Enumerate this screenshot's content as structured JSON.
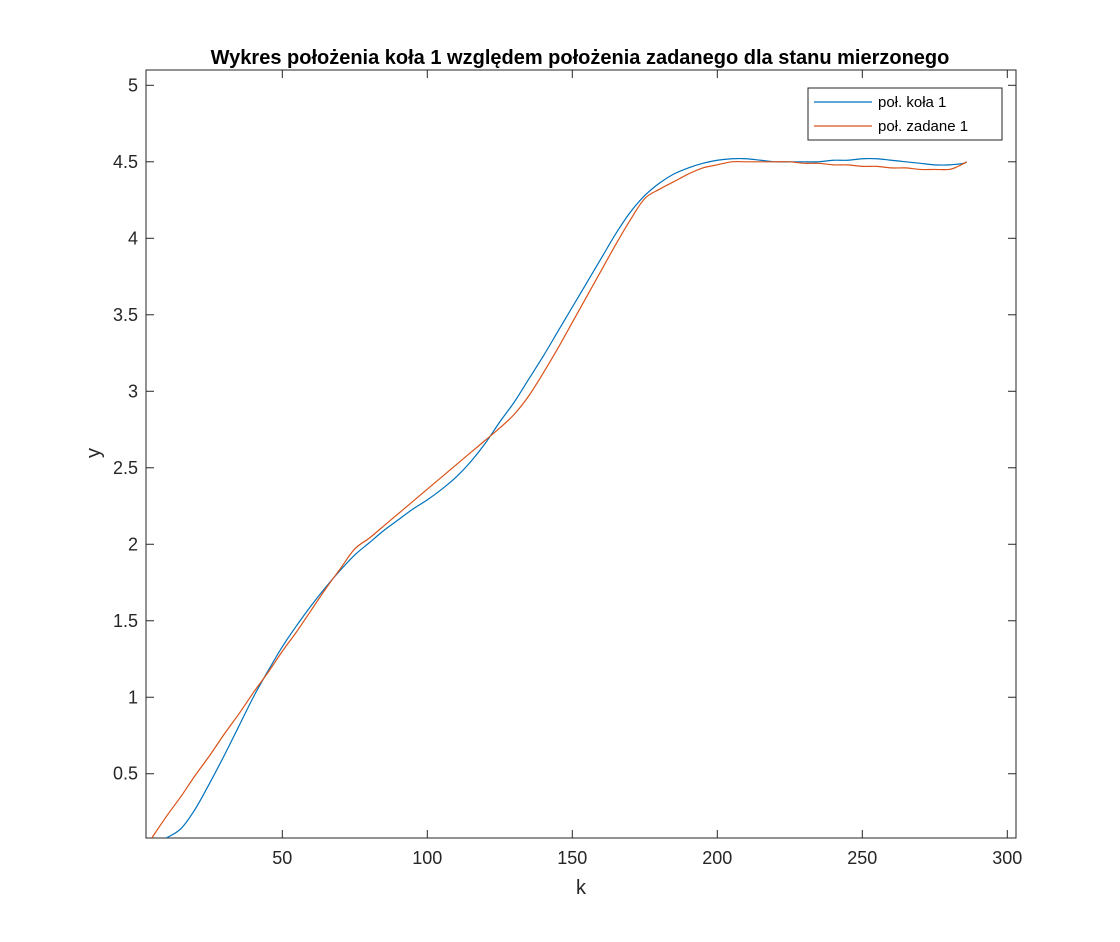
{
  "chart_data": {
    "type": "line",
    "title": "Wykres położenia koła 1 względem położenia zadanego dla stanu mierzonego",
    "xlabel": "k",
    "ylabel": "y",
    "xlim": [
      3,
      303
    ],
    "ylim": [
      0.08,
      5.1
    ],
    "xticks": [
      50,
      100,
      150,
      200,
      250,
      300
    ],
    "yticks": [
      0.5,
      1,
      1.5,
      2,
      2.5,
      3,
      3.5,
      4,
      4.5,
      5
    ],
    "xtick_labels": [
      "50",
      "100",
      "150",
      "200",
      "250",
      "300"
    ],
    "ytick_labels": [
      "0.5",
      "1",
      "1.5",
      "2",
      "2.5",
      "3",
      "3.5",
      "4",
      "4.5",
      "5"
    ],
    "grid": false,
    "legend_position": "top-right",
    "series": [
      {
        "name": "poł. koła 1",
        "color": "#0072BD",
        "x": [
          10,
          15,
          20,
          25,
          30,
          35,
          40,
          45,
          50,
          55,
          60,
          65,
          70,
          75,
          80,
          85,
          90,
          95,
          100,
          105,
          110,
          115,
          120,
          125,
          130,
          135,
          140,
          145,
          150,
          155,
          160,
          165,
          170,
          175,
          180,
          185,
          190,
          195,
          200,
          205,
          210,
          215,
          220,
          225,
          230,
          235,
          240,
          245,
          250,
          255,
          260,
          265,
          270,
          275,
          280,
          285,
          286
        ],
        "y": [
          0.08,
          0.14,
          0.27,
          0.44,
          0.62,
          0.81,
          1.0,
          1.17,
          1.33,
          1.47,
          1.6,
          1.72,
          1.83,
          1.93,
          2.01,
          2.09,
          2.16,
          2.23,
          2.29,
          2.36,
          2.44,
          2.54,
          2.66,
          2.8,
          2.93,
          3.08,
          3.23,
          3.39,
          3.55,
          3.71,
          3.87,
          4.03,
          4.17,
          4.28,
          4.36,
          4.42,
          4.46,
          4.49,
          4.51,
          4.52,
          4.52,
          4.51,
          4.5,
          4.5,
          4.5,
          4.5,
          4.51,
          4.51,
          4.52,
          4.52,
          4.51,
          4.5,
          4.49,
          4.48,
          4.48,
          4.49,
          4.5
        ]
      },
      {
        "name": "poł. zadane 1",
        "color": "#D95319",
        "x": [
          5,
          10,
          15,
          20,
          25,
          30,
          35,
          40,
          45,
          50,
          55,
          60,
          65,
          70,
          75,
          80,
          85,
          90,
          95,
          100,
          105,
          110,
          115,
          120,
          125,
          130,
          135,
          140,
          145,
          150,
          155,
          160,
          165,
          170,
          175,
          180,
          185,
          190,
          195,
          200,
          205,
          210,
          215,
          220,
          225,
          230,
          235,
          240,
          245,
          250,
          255,
          260,
          265,
          270,
          275,
          280,
          283,
          286
        ],
        "y": [
          0.08,
          0.22,
          0.35,
          0.49,
          0.62,
          0.76,
          0.89,
          1.03,
          1.16,
          1.3,
          1.43,
          1.57,
          1.71,
          1.84,
          1.97,
          2.04,
          2.12,
          2.2,
          2.28,
          2.36,
          2.44,
          2.52,
          2.6,
          2.68,
          2.76,
          2.85,
          2.97,
          3.12,
          3.28,
          3.45,
          3.62,
          3.79,
          3.96,
          4.12,
          4.26,
          4.32,
          4.37,
          4.42,
          4.46,
          4.48,
          4.5,
          4.5,
          4.5,
          4.5,
          4.5,
          4.49,
          4.49,
          4.48,
          4.48,
          4.47,
          4.47,
          4.46,
          4.46,
          4.45,
          4.45,
          4.45,
          4.47,
          4.5
        ]
      }
    ]
  }
}
